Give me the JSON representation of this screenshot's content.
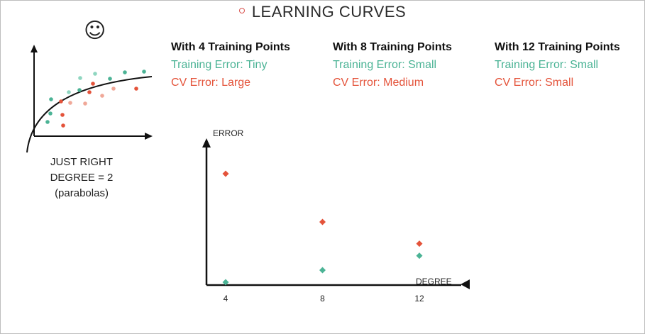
{
  "title": "LEARNING CURVES",
  "sketch": {
    "caption_line1": "JUST RIGHT",
    "caption_line2": "DEGREE = 2",
    "caption_line3": "(parabolas)",
    "smiley": "☺"
  },
  "columns": [
    {
      "heading": "With 4 Training Points",
      "train": "Training Error: Tiny",
      "cv": "CV Error: Large"
    },
    {
      "heading": "With 8 Training Points",
      "train": "Training Error: Small",
      "cv": "CV Error: Medium"
    },
    {
      "heading": "With 12 Training Points",
      "train": "Training Error: Small",
      "cv": "CV Error: Small"
    }
  ],
  "colors": {
    "train": "#4bb395",
    "cv": "#e4533a",
    "train_light": "#8fd6c0",
    "cv_light": "#f0a898"
  },
  "chart_data": {
    "type": "scatter",
    "xlabel": "DEGREE",
    "ylabel": "ERROR",
    "x": [
      4,
      8,
      12
    ],
    "x_ticks": [
      "4",
      "8",
      "12"
    ],
    "xlim": [
      4,
      12
    ],
    "ylim": [
      0,
      1
    ],
    "series": [
      {
        "color": "#e4533a",
        "values": [
          0.9,
          0.5,
          0.32
        ]
      },
      {
        "color": "#4bb395",
        "values": [
          0.0,
          0.1,
          0.22
        ]
      }
    ],
    "grid": false
  }
}
